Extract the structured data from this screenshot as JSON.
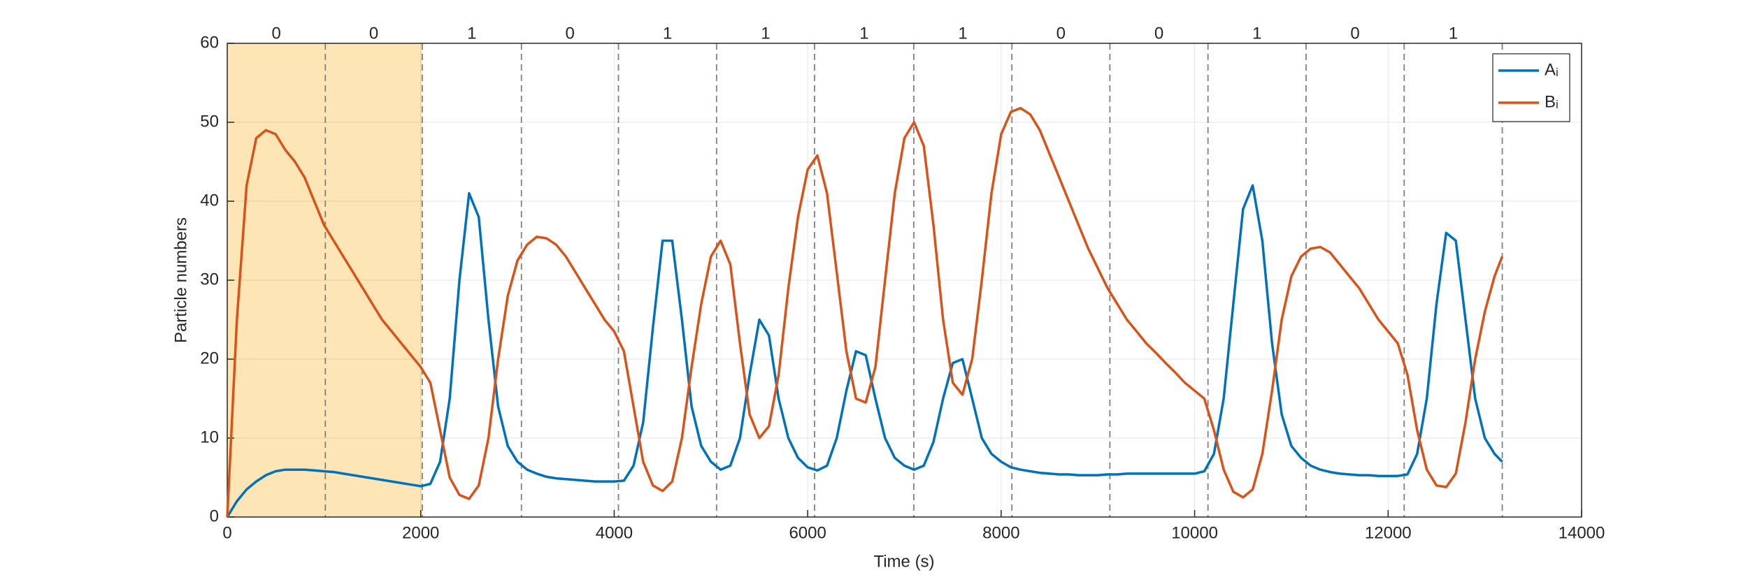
{
  "chart_data": {
    "type": "line",
    "xlabel": "Time (s)",
    "ylabel": "Particle numbers",
    "xlim": [
      0,
      14000
    ],
    "xticks": [
      0,
      2000,
      4000,
      6000,
      8000,
      10000,
      12000,
      14000
    ],
    "ylim": [
      0,
      60
    ],
    "yticks": [
      0,
      10,
      20,
      30,
      40,
      50,
      60
    ],
    "grid": true,
    "legend_position": "upper right",
    "shaded_region": [
      0,
      2016
    ],
    "shaded_color": "#fde5b5",
    "dividers": [
      1014,
      2016,
      3041,
      4044,
      5058,
      6071,
      7097,
      8111,
      9124,
      10138,
      11152,
      12166,
      13180
    ],
    "interval_labels": [
      0,
      0,
      1,
      0,
      1,
      1,
      1,
      1,
      0,
      0,
      1,
      0,
      1
    ],
    "x": [
      0,
      100,
      200,
      300,
      400,
      500,
      600,
      700,
      800,
      900,
      1000,
      1100,
      1200,
      1300,
      1400,
      1500,
      1600,
      1700,
      1800,
      1900,
      2000,
      2100,
      2200,
      2300,
      2400,
      2500,
      2600,
      2700,
      2800,
      2900,
      3000,
      3100,
      3200,
      3300,
      3400,
      3500,
      3600,
      3700,
      3800,
      3900,
      4000,
      4100,
      4200,
      4300,
      4400,
      4500,
      4600,
      4700,
      4800,
      4900,
      5000,
      5100,
      5200,
      5300,
      5400,
      5500,
      5600,
      5700,
      5800,
      5900,
      6000,
      6100,
      6200,
      6300,
      6400,
      6500,
      6600,
      6700,
      6800,
      6900,
      7000,
      7100,
      7200,
      7300,
      7400,
      7500,
      7600,
      7700,
      7800,
      7900,
      8000,
      8100,
      8200,
      8300,
      8400,
      8500,
      8600,
      8700,
      8800,
      8900,
      9000,
      9100,
      9200,
      9300,
      9400,
      9500,
      9600,
      9700,
      9800,
      9900,
      10000,
      10100,
      10200,
      10300,
      10400,
      10500,
      10600,
      10700,
      10800,
      10900,
      11000,
      11100,
      11200,
      11300,
      11400,
      11500,
      11600,
      11700,
      11800,
      11900,
      12000,
      12100,
      12200,
      12300,
      12400,
      12500,
      12600,
      12700,
      12800,
      12900,
      13000,
      13100,
      13180
    ],
    "series": [
      {
        "name": "Aᵢ",
        "color": "#0072BD",
        "values": [
          0,
          2,
          3.5,
          4.5,
          5.3,
          5.8,
          6,
          6,
          6,
          5.9,
          5.8,
          5.7,
          5.5,
          5.3,
          5.1,
          4.9,
          4.7,
          4.5,
          4.3,
          4.1,
          3.9,
          4.2,
          7,
          15,
          30,
          41,
          38,
          25,
          14,
          9,
          7,
          6,
          5.5,
          5.1,
          4.9,
          4.8,
          4.7,
          4.6,
          4.5,
          4.5,
          4.5,
          4.6,
          6.5,
          12,
          24,
          35,
          35,
          25,
          14,
          9,
          7,
          6,
          6.5,
          10,
          18,
          25,
          23,
          15,
          10,
          7.5,
          6.3,
          5.9,
          6.5,
          10,
          16,
          21,
          20.5,
          15,
          10,
          7.5,
          6.5,
          6,
          6.5,
          9.5,
          15,
          19.5,
          20,
          15,
          10,
          8,
          7,
          6.3,
          6,
          5.8,
          5.6,
          5.5,
          5.4,
          5.4,
          5.3,
          5.3,
          5.3,
          5.4,
          5.4,
          5.5,
          5.5,
          5.5,
          5.5,
          5.5,
          5.5,
          5.5,
          5.5,
          5.8,
          8,
          15,
          27,
          39,
          42,
          35,
          22,
          13,
          9,
          7.5,
          6.5,
          6,
          5.7,
          5.5,
          5.4,
          5.3,
          5.3,
          5.2,
          5.2,
          5.2,
          5.4,
          8,
          15,
          27,
          36,
          35,
          25,
          15,
          10,
          8,
          7
        ]
      },
      {
        "name": "Bᵢ",
        "color": "#D95319",
        "values": [
          0,
          25,
          42,
          48,
          49,
          48.5,
          46.5,
          45,
          43,
          40,
          37,
          35,
          33,
          31,
          29,
          27,
          25,
          23.5,
          22,
          20.5,
          19,
          17,
          11,
          5,
          2.8,
          2.3,
          4,
          10,
          20,
          28,
          32.5,
          34.5,
          35.5,
          35.3,
          34.5,
          33,
          31,
          29,
          27,
          25,
          23.5,
          21,
          14,
          7,
          4,
          3.3,
          4.5,
          10,
          19,
          27,
          33,
          35,
          32,
          22,
          13,
          10,
          11.5,
          18,
          29,
          38,
          44,
          45.8,
          41,
          31,
          21,
          15,
          14.5,
          19,
          30,
          41,
          48,
          50,
          47,
          37,
          25,
          17,
          15.5,
          20,
          30,
          41,
          48.5,
          51.3,
          51.8,
          51,
          49,
          46,
          43,
          40,
          37,
          34,
          31.5,
          29,
          27,
          25,
          23.5,
          22,
          20.8,
          19.5,
          18.3,
          17,
          16,
          15,
          11,
          6,
          3.2,
          2.5,
          3.5,
          8,
          16,
          25,
          30.5,
          33,
          34,
          34.2,
          33.5,
          32,
          30.5,
          29,
          27,
          25,
          23.5,
          22,
          18,
          11,
          6,
          4,
          3.8,
          5.5,
          12,
          20,
          26,
          30.5,
          33
        ]
      }
    ]
  }
}
